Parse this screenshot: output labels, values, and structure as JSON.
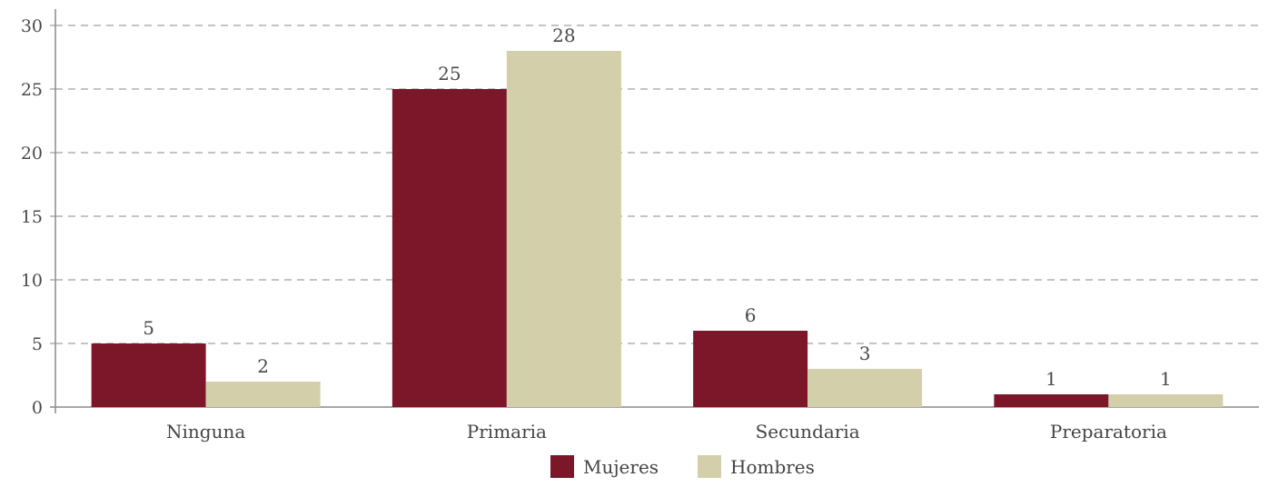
{
  "chart_data": {
    "type": "bar",
    "categories": [
      "Ninguna",
      "Primaria",
      "Secundaria",
      "Preparatoria"
    ],
    "series": [
      {
        "name": "Mujeres",
        "values": [
          5,
          25,
          6,
          1
        ],
        "labels": [
          "5",
          "25",
          "6",
          "1"
        ],
        "color": "#7b1729"
      },
      {
        "name": "Hombres",
        "values": [
          2,
          28,
          3,
          1
        ],
        "labels": [
          "2",
          "28",
          "3",
          "1"
        ],
        "color": "#d2cfaa"
      }
    ],
    "yticks": [
      "0",
      "5",
      "10",
      "15",
      "20",
      "25",
      "30"
    ],
    "ylim": [
      0,
      30
    ],
    "grid": "horizontal dashed",
    "legend_position": "bottom-center",
    "title": "",
    "xlabel": "",
    "ylabel": ""
  }
}
